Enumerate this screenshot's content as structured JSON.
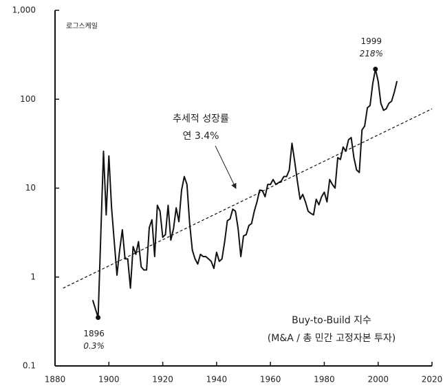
{
  "chart_data": {
    "type": "line",
    "scale_note": "로그스케일",
    "log_scale": true,
    "series": [
      {
        "name": "Buy-to-Build 지수",
        "color": "#111111",
        "x": [
          1894,
          1896,
          1898,
          1899,
          1900,
          1901,
          1902,
          1903,
          1904,
          1905,
          1906,
          1907,
          1908,
          1909,
          1910,
          1911,
          1912,
          1913,
          1914,
          1915,
          1916,
          1917,
          1918,
          1919,
          1920,
          1921,
          1922,
          1923,
          1924,
          1925,
          1926,
          1927,
          1928,
          1929,
          1930,
          1931,
          1932,
          1933,
          1934,
          1935,
          1936,
          1937,
          1938,
          1939,
          1940,
          1941,
          1942,
          1943,
          1944,
          1945,
          1946,
          1947,
          1948,
          1949,
          1950,
          1951,
          1952,
          1953,
          1954,
          1955,
          1956,
          1957,
          1958,
          1959,
          1960,
          1961,
          1962,
          1963,
          1964,
          1965,
          1966,
          1967,
          1968,
          1969,
          1970,
          1971,
          1972,
          1973,
          1974,
          1975,
          1976,
          1977,
          1978,
          1979,
          1980,
          1981,
          1982,
          1983,
          1984,
          1985,
          1986,
          1987,
          1988,
          1989,
          1990,
          1991,
          1992,
          1993,
          1994,
          1995,
          1996,
          1997,
          1998,
          1999,
          2000,
          2001,
          2002,
          2003,
          2004,
          2005,
          2006,
          2007
        ],
        "values": [
          0.55,
          0.35,
          26,
          5,
          23,
          6,
          2.5,
          1.05,
          2,
          3.4,
          1.6,
          1.6,
          0.75,
          2.2,
          1.8,
          2.5,
          1.3,
          1.2,
          1.2,
          3.6,
          4.4,
          1.7,
          6.4,
          5.5,
          2.8,
          3,
          6.4,
          2.6,
          3.5,
          6,
          4.2,
          9.5,
          13.5,
          11,
          4,
          2,
          1.6,
          1.4,
          1.8,
          1.7,
          1.7,
          1.6,
          1.5,
          1.25,
          1.9,
          1.5,
          1.6,
          2.5,
          4.3,
          4.5,
          5.8,
          5.5,
          3.5,
          1.7,
          2.9,
          3,
          3.8,
          4,
          5.5,
          7,
          9.5,
          9.4,
          8,
          11,
          11,
          12.5,
          11,
          11.5,
          12,
          13.5,
          13.5,
          16,
          32,
          20,
          12,
          7.5,
          8.5,
          7,
          5.5,
          5.2,
          5,
          7.5,
          6.5,
          8,
          9,
          7,
          12.5,
          11,
          10,
          22,
          21,
          29,
          26,
          35,
          37,
          22,
          16,
          15,
          45,
          50,
          80,
          85,
          150,
          218,
          160,
          90,
          75,
          78,
          90,
          95,
          120,
          160
        ]
      }
    ],
    "series_note": "(M&A / 총 민간 고정자본 투자)",
    "trend": {
      "x": [
        1883,
        2020
      ],
      "values": [
        0.75,
        78
      ],
      "color": "#111111",
      "label": "추세적 성장률",
      "sublabel": "연 3.4%"
    },
    "annotations": [
      {
        "x": 1896,
        "text": "0.3%"
      },
      {
        "x": 1999,
        "text": "218%"
      }
    ],
    "xlim": [
      1880,
      2020
    ],
    "xticks": [
      1880,
      1900,
      1920,
      1940,
      1960,
      1980,
      2000,
      2020
    ],
    "ylim": [
      0.1,
      1000
    ],
    "yticks": [
      0.1,
      1,
      10,
      100,
      {
        "value": 1000,
        "label": "1,000"
      }
    ]
  }
}
